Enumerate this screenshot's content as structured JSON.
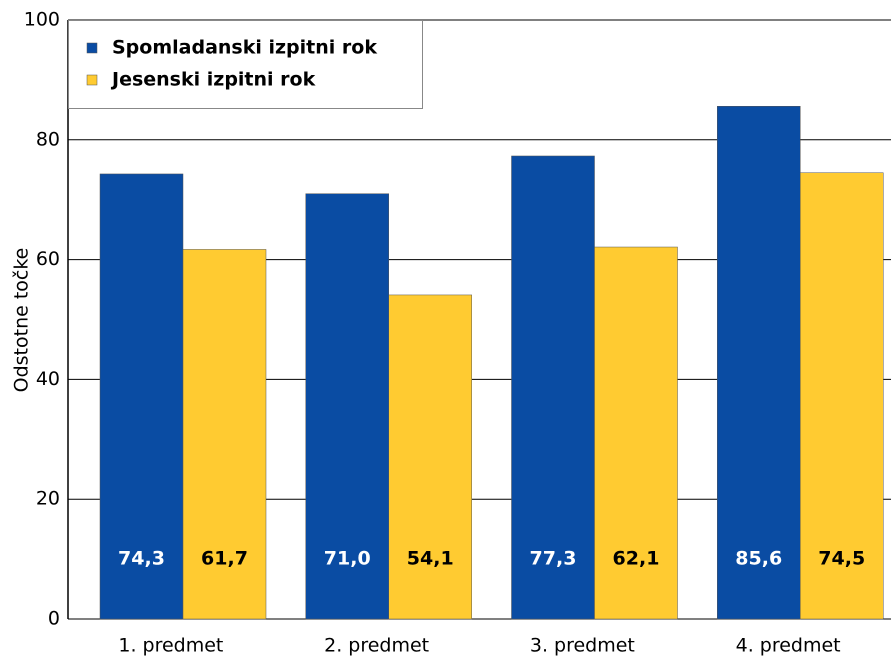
{
  "chart_data": {
    "type": "bar",
    "categories": [
      "1. predmet",
      "2. predmet",
      "3. predmet",
      "4. predmet"
    ],
    "series": [
      {
        "name": "Spomladanski izpitni rok",
        "color": "#0a4ca3",
        "values": [
          74.3,
          71.0,
          77.3,
          85.6
        ],
        "value_labels": [
          "74,3",
          "71,0",
          "77,3",
          "85,6"
        ]
      },
      {
        "name": "Jesenski izpitni rok",
        "color": "#ffcb31",
        "values": [
          61.7,
          54.1,
          62.1,
          74.5
        ],
        "value_labels": [
          "61,7",
          "54,1",
          "62,1",
          "74,5"
        ]
      }
    ],
    "y_label": "Odstotne točke",
    "ylim": [
      0,
      100
    ],
    "yticks": [
      0,
      20,
      40,
      60,
      80,
      100
    ],
    "grid": true,
    "legend": "top-left"
  }
}
